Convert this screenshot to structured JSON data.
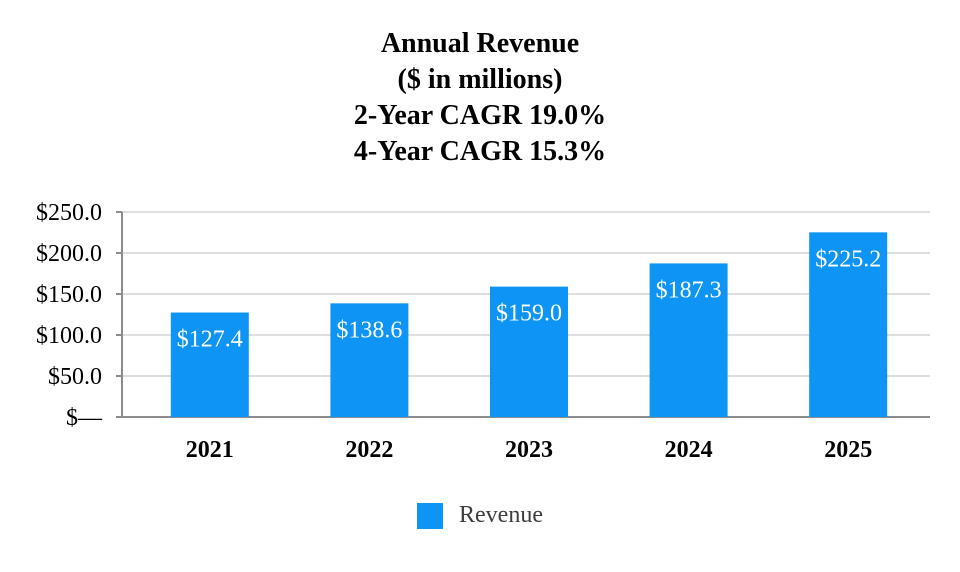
{
  "chart_data": {
    "type": "bar",
    "title_lines": [
      "Annual Revenue",
      "($ in millions)",
      "2-Year CAGR 19.0%",
      "4-Year CAGR 15.3%"
    ],
    "categories": [
      "2021",
      "2022",
      "2023",
      "2024",
      "2025"
    ],
    "series": [
      {
        "name": "Revenue",
        "values": [
          127.4,
          138.6,
          159.0,
          187.3,
          225.2
        ],
        "color": "#0d94f4"
      }
    ],
    "data_labels": [
      "$127.4",
      "$138.6",
      "$159.0",
      "$187.3",
      "$225.2"
    ],
    "y_ticks": [
      0,
      50,
      100,
      150,
      200,
      250
    ],
    "y_tick_labels": [
      "$—",
      "$50.0",
      "$100.0",
      "$150.0",
      "$200.0",
      "$250.0"
    ],
    "ylim": [
      0,
      250
    ],
    "grid": true,
    "legend": "bottom-center"
  }
}
